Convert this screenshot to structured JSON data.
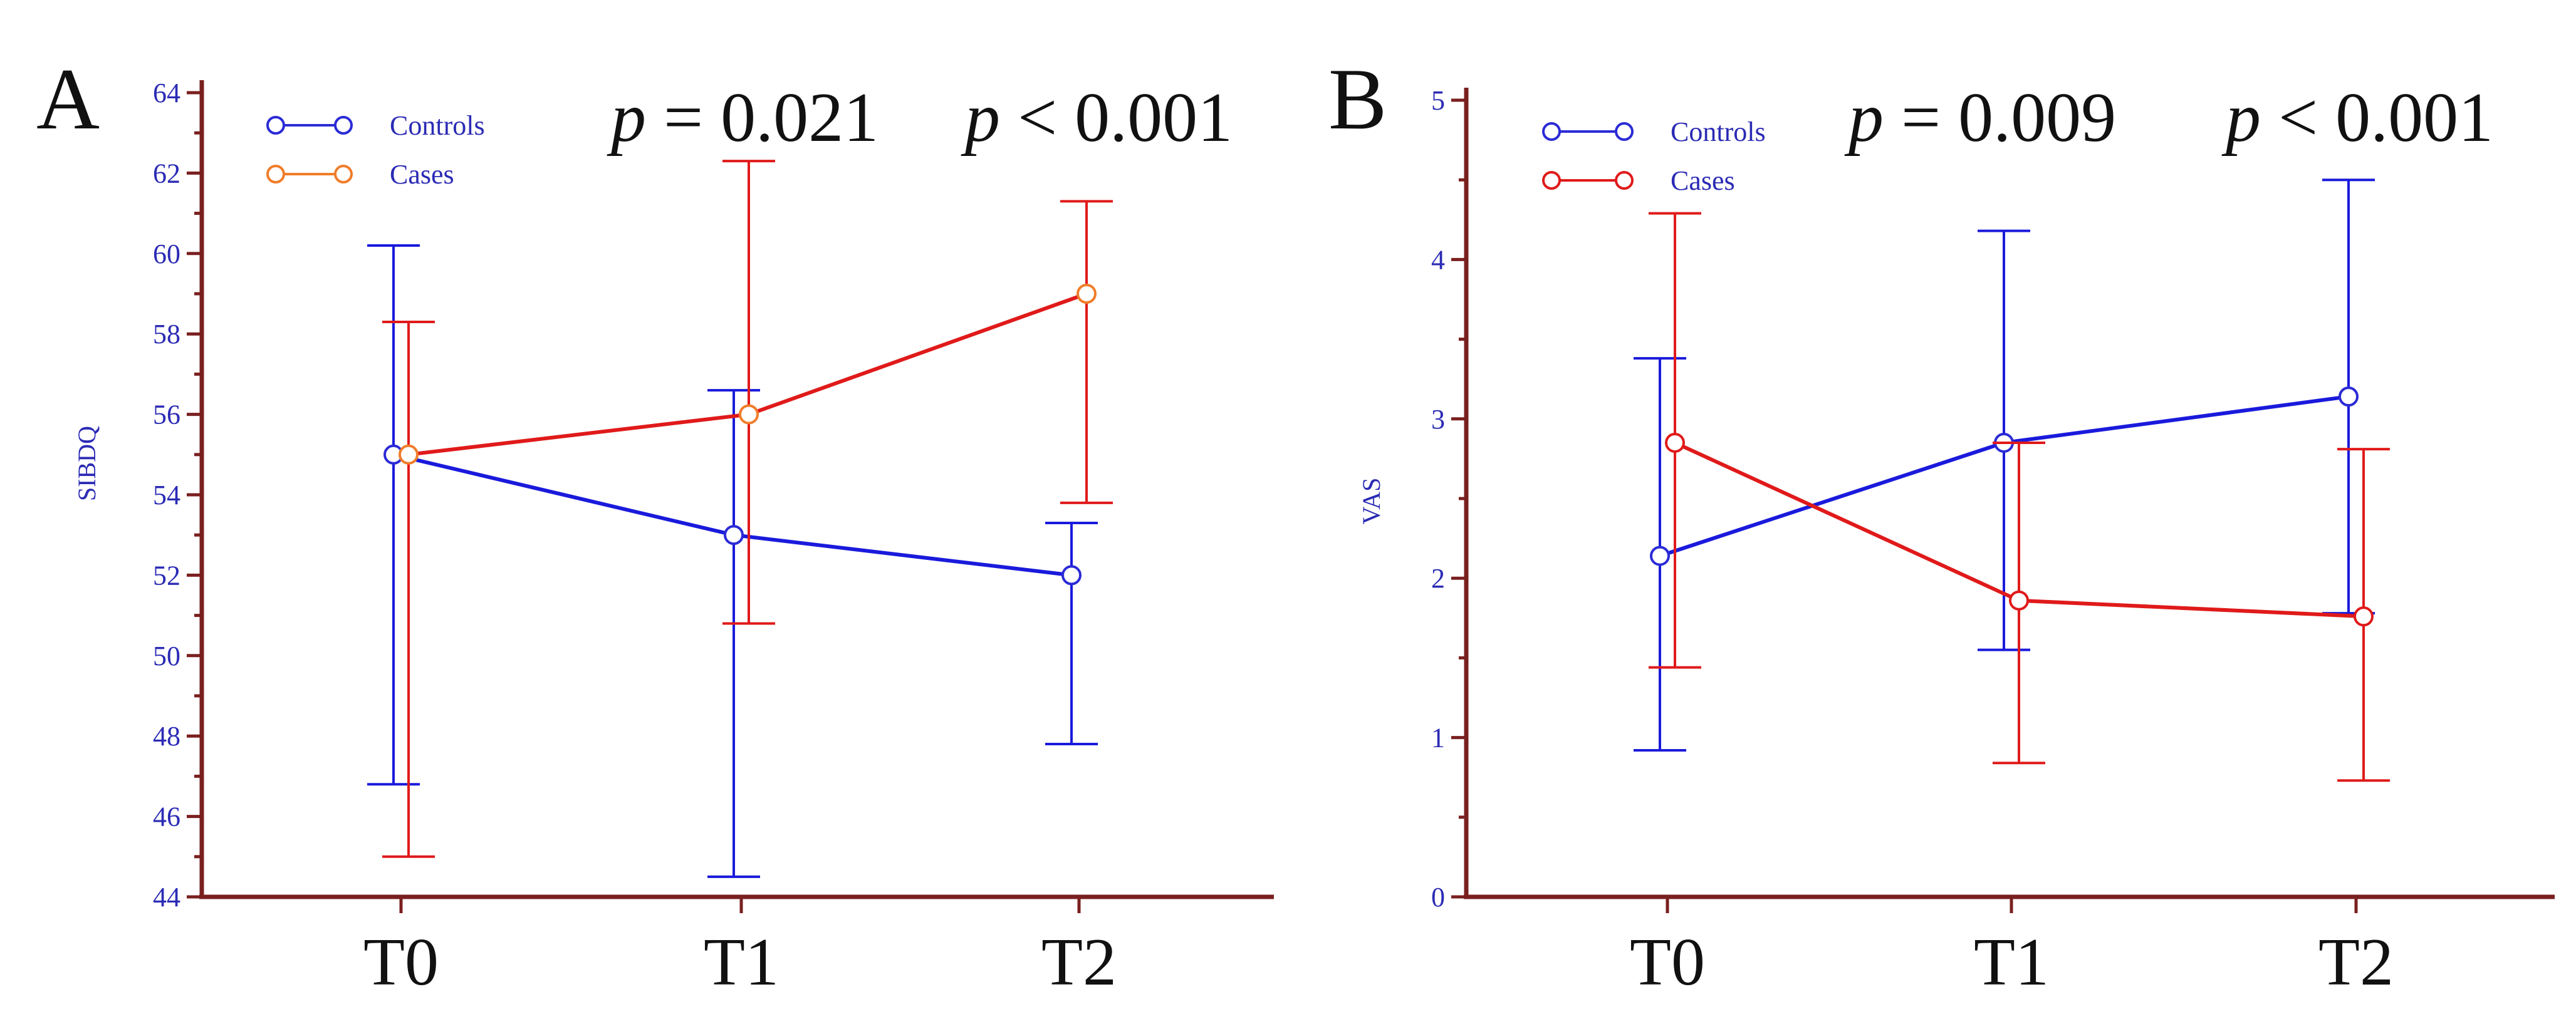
{
  "chart_data": [
    {
      "panel": "A",
      "type": "line",
      "ylabel": "SIBDQ",
      "xlabel": "",
      "categories": [
        "T0",
        "T1",
        "T2"
      ],
      "ylim": [
        44,
        64
      ],
      "yticks": [
        44,
        46,
        48,
        50,
        52,
        54,
        56,
        58,
        60,
        62,
        64
      ],
      "annotations": [
        {
          "p_symbol": "p",
          "rest": " = 0.021"
        },
        {
          "p_symbol": "p",
          "rest": " < 0.001"
        }
      ],
      "series": [
        {
          "name": "Controls",
          "color": "#1a1adc",
          "legend_color": "#2b2bd6",
          "values": [
            55,
            53,
            52
          ],
          "error_low": [
            46.8,
            44.5,
            47.8
          ],
          "error_high": [
            60.2,
            56.6,
            53.3
          ]
        },
        {
          "name": "Cases",
          "color": "#e01a1a",
          "legend_color": "#f07d2a",
          "values": [
            55,
            56,
            59
          ],
          "error_low": [
            45.0,
            50.8,
            53.8
          ],
          "error_high": [
            58.3,
            62.3,
            61.3
          ]
        }
      ]
    },
    {
      "panel": "B",
      "type": "line",
      "ylabel": "VAS",
      "xlabel": "",
      "categories": [
        "T0",
        "T1",
        "T2"
      ],
      "ylim": [
        0,
        5
      ],
      "yticks": [
        0,
        1,
        2,
        3,
        4,
        5
      ],
      "annotations": [
        {
          "p_symbol": "p",
          "rest": " = 0.009"
        },
        {
          "p_symbol": "p",
          "rest": " < 0.001"
        }
      ],
      "series": [
        {
          "name": "Controls",
          "color": "#1a1adc",
          "legend_color": "#2b2bd6",
          "values": [
            2.14,
            2.85,
            3.14
          ],
          "error_low": [
            0.92,
            1.55,
            1.78
          ],
          "error_high": [
            3.38,
            4.18,
            4.5
          ]
        },
        {
          "name": "Cases",
          "color": "#e01a1a",
          "legend_color": "#e01a1a",
          "values": [
            2.85,
            1.86,
            1.76
          ],
          "error_low": [
            1.44,
            0.84,
            0.73
          ],
          "error_high": [
            4.29,
            2.85,
            2.81
          ]
        }
      ]
    }
  ]
}
